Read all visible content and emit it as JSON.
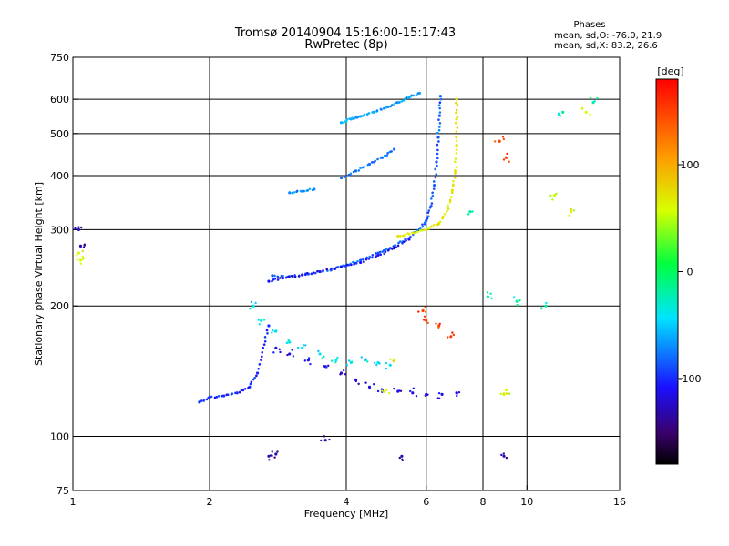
{
  "chart_data": {
    "type": "scatter",
    "title": "Tromsø 20140904 15:16:00-15:17:43",
    "subtitle": "RwPretec (8p)",
    "phase_legend": {
      "title": "Phases",
      "line1": "mean, sd,O: -76.0, 21.9",
      "line2": "mean, sd,X:  83.2, 26.6"
    },
    "xlabel": "Frequency [MHz]",
    "ylabel": "Stationary phase Virtual Height [km]",
    "x_scale": "log",
    "y_scale": "log",
    "xlim": [
      1,
      16
    ],
    "ylim": [
      75,
      750
    ],
    "x_ticks": [
      1,
      2,
      4,
      6,
      8,
      10,
      16
    ],
    "x_tick_labels": [
      "1",
      "2",
      "4",
      "6",
      "8",
      "10",
      "16"
    ],
    "y_ticks": [
      75,
      100,
      200,
      300,
      400,
      500,
      600,
      750
    ],
    "y_tick_labels": [
      "75",
      "100",
      "200",
      "300",
      "400",
      "500",
      "600",
      "750"
    ],
    "grid": true,
    "colorbar": {
      "label": "[deg]",
      "min": -180,
      "max": 180,
      "ticks": [
        100,
        0,
        -100
      ],
      "tick_labels": [
        "100",
        "0",
        "-100"
      ]
    },
    "series": [
      {
        "kind": "trace",
        "phase": -100,
        "points": [
          [
            1.9,
            120
          ],
          [
            2.0,
            123
          ],
          [
            2.15,
            124
          ],
          [
            2.3,
            126
          ],
          [
            2.45,
            130
          ],
          [
            2.55,
            140
          ],
          [
            2.62,
            160
          ],
          [
            2.7,
            180
          ]
        ]
      },
      {
        "kind": "trace",
        "phase": -85,
        "points": [
          [
            2.75,
            235
          ],
          [
            3.0,
            234
          ],
          [
            3.3,
            237
          ],
          [
            3.7,
            242
          ],
          [
            4.0,
            248
          ],
          [
            4.3,
            255
          ],
          [
            4.7,
            265
          ],
          [
            5.0,
            272
          ],
          [
            5.4,
            285
          ],
          [
            5.8,
            300
          ],
          [
            6.0,
            315
          ],
          [
            6.15,
            340
          ],
          [
            6.25,
            380
          ],
          [
            6.32,
            430
          ],
          [
            6.38,
            490
          ],
          [
            6.42,
            550
          ],
          [
            6.45,
            610
          ]
        ]
      },
      {
        "kind": "trace",
        "phase": -110,
        "points": [
          [
            2.7,
            228
          ],
          [
            2.9,
            232
          ],
          [
            3.2,
            236
          ],
          [
            3.5,
            240
          ],
          [
            3.9,
            246
          ],
          [
            4.3,
            252
          ],
          [
            4.7,
            262
          ],
          [
            5.1,
            272
          ],
          [
            5.5,
            285
          ]
        ]
      },
      {
        "kind": "trace",
        "phase": 70,
        "points": [
          [
            5.2,
            290
          ],
          [
            5.6,
            295
          ],
          [
            6.0,
            300
          ],
          [
            6.4,
            310
          ],
          [
            6.7,
            335
          ],
          [
            6.85,
            370
          ],
          [
            6.95,
            410
          ],
          [
            7.0,
            470
          ],
          [
            7.0,
            540
          ],
          [
            7.0,
            600
          ]
        ]
      },
      {
        "kind": "trace",
        "phase": -80,
        "points": [
          [
            3.9,
            395
          ],
          [
            4.2,
            410
          ],
          [
            4.5,
            425
          ],
          [
            4.8,
            440
          ],
          [
            5.1,
            460
          ]
        ]
      },
      {
        "kind": "trace",
        "phase": -70,
        "points": [
          [
            3.0,
            365
          ],
          [
            3.2,
            368
          ],
          [
            3.4,
            372
          ]
        ]
      },
      {
        "kind": "trace",
        "phase": -60,
        "points": [
          [
            3.9,
            530
          ],
          [
            4.1,
            540
          ],
          [
            4.3,
            548
          ],
          [
            4.6,
            560
          ],
          [
            4.9,
            575
          ],
          [
            5.2,
            590
          ],
          [
            5.5,
            605
          ],
          [
            5.8,
            620
          ]
        ]
      },
      {
        "kind": "scatter",
        "phase": -40,
        "points": [
          [
            2.5,
            200
          ],
          [
            2.6,
            185
          ],
          [
            2.8,
            175
          ],
          [
            3.0,
            165
          ],
          [
            3.2,
            160
          ],
          [
            3.5,
            155
          ],
          [
            3.8,
            150
          ],
          [
            4.1,
            148
          ],
          [
            4.4,
            150
          ],
          [
            4.7,
            148
          ],
          [
            5.0,
            146
          ]
        ]
      },
      {
        "kind": "scatter",
        "phase": -115,
        "points": [
          [
            2.8,
            160
          ],
          [
            3.0,
            155
          ],
          [
            3.3,
            150
          ],
          [
            3.6,
            145
          ],
          [
            3.9,
            140
          ],
          [
            4.2,
            135
          ],
          [
            4.5,
            130
          ],
          [
            4.8,
            128
          ],
          [
            5.2,
            127
          ],
          [
            5.6,
            126
          ],
          [
            6.0,
            125
          ],
          [
            6.5,
            125
          ],
          [
            7.0,
            126
          ]
        ]
      },
      {
        "kind": "scatter",
        "phase": -130,
        "points": [
          [
            1.03,
            300
          ],
          [
            1.04,
            275
          ],
          [
            2.7,
            90
          ],
          [
            2.8,
            91
          ],
          [
            3.6,
            98
          ],
          [
            5.3,
            90
          ],
          [
            8.9,
            90
          ]
        ]
      },
      {
        "kind": "scatter",
        "phase": 60,
        "points": [
          [
            1.03,
            265
          ],
          [
            1.04,
            255
          ],
          [
            4.9,
            128
          ],
          [
            5.1,
            150
          ],
          [
            8.9,
            125
          ],
          [
            9.0,
            128
          ],
          [
            11.5,
            360
          ],
          [
            12.5,
            330
          ],
          [
            13.5,
            560
          ]
        ]
      },
      {
        "kind": "scatter",
        "phase": 150,
        "points": [
          [
            5.9,
            195
          ],
          [
            6.0,
            185
          ],
          [
            6.4,
            180
          ],
          [
            6.8,
            170
          ],
          [
            8.7,
            480
          ],
          [
            9.0,
            440
          ]
        ]
      },
      {
        "kind": "scatter",
        "phase": -20,
        "points": [
          [
            7.5,
            330
          ],
          [
            8.2,
            210
          ],
          [
            9.5,
            205
          ],
          [
            11.0,
            200
          ],
          [
            12.0,
            560
          ],
          [
            14.0,
            590
          ]
        ]
      }
    ]
  }
}
